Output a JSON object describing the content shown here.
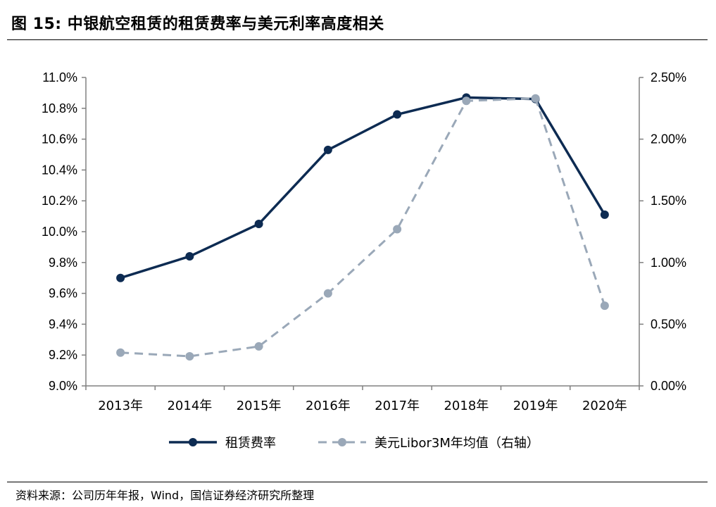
{
  "header": {
    "title": "图 15:  中银航空租赁的租赁费率与美元利率高度相关"
  },
  "footer": {
    "source": "资料来源：公司历年年报，Wind，国信证券经济研究所整理"
  },
  "chart_data": {
    "type": "line",
    "title": "中银航空租赁的租赁费率与美元利率高度相关",
    "categories": [
      "2013年",
      "2014年",
      "2015年",
      "2016年",
      "2017年",
      "2018年",
      "2019年",
      "2020年"
    ],
    "series": [
      {
        "name": "租赁费率",
        "axis": "left",
        "color": "#0d2b52",
        "dash": "solid",
        "values": [
          9.7,
          9.84,
          10.05,
          10.53,
          10.76,
          10.87,
          10.86,
          10.11
        ]
      },
      {
        "name": "美元Libor3M年均值（右轴）",
        "axis": "right",
        "color": "#9aa8b8",
        "dash": "dashed",
        "values": [
          0.27,
          0.24,
          0.32,
          0.75,
          1.27,
          2.31,
          2.33,
          0.65
        ]
      }
    ],
    "y_left": {
      "min": 9.0,
      "max": 11.0,
      "step": 0.2,
      "ticks": [
        "9.0%",
        "9.2%",
        "9.4%",
        "9.6%",
        "9.8%",
        "10.0%",
        "10.2%",
        "10.4%",
        "10.6%",
        "10.8%",
        "11.0%"
      ]
    },
    "y_right": {
      "min": 0.0,
      "max": 2.5,
      "step": 0.5,
      "ticks": [
        "0.00%",
        "0.50%",
        "1.00%",
        "1.50%",
        "2.00%",
        "2.50%"
      ]
    },
    "grid": false,
    "legend": "bottom"
  }
}
